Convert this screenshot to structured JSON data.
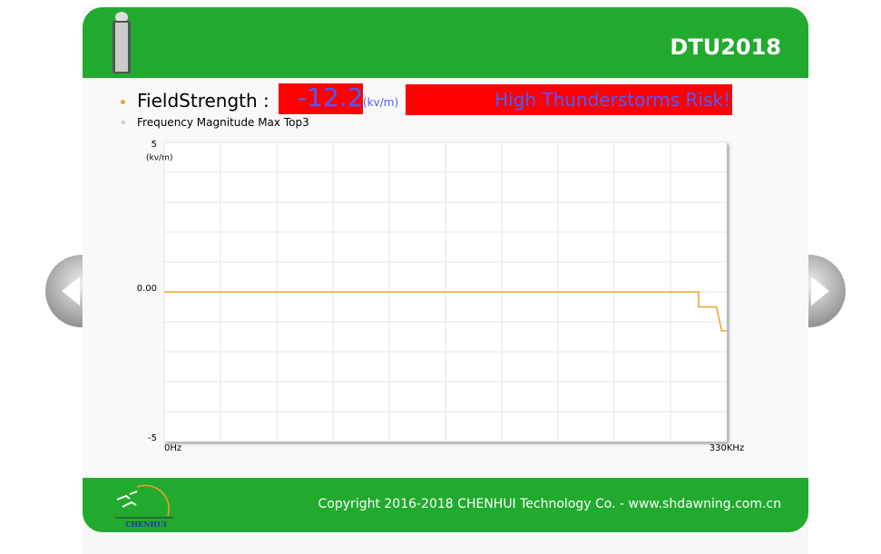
{
  "header": {
    "title": "DTU2018"
  },
  "status": {
    "label": "FieldStrength :",
    "value": -12.2,
    "unit": "(kv/m)",
    "alert": "High Thunderstorms Risk!"
  },
  "chart_data": {
    "type": "line",
    "title": "Frequency Magnitude Max Top3",
    "y_label": "(kv/m)",
    "x": [
      0,
      313.5,
      313.5,
      324,
      327,
      330
    ],
    "series": [
      {
        "color": "#f0a030",
        "values": [
          0,
          0,
          -0.5,
          -0.5,
          -1.3,
          -1.3
        ]
      }
    ],
    "xlim": [
      0,
      330
    ],
    "xticks": [
      {
        "value": 0,
        "label": "0Hz"
      },
      {
        "value": 330,
        "label": "330KHz"
      }
    ],
    "ylim": [
      -5,
      5
    ],
    "yticks": [
      5,
      {
        "value": 0,
        "label": "0.00"
      },
      -5
    ],
    "grid": true
  },
  "footer": {
    "copyright": "Copyright 2016-2018 CHENHUI Technology Co. - www.shdawning.com.cn",
    "logo": "CHENHUI"
  }
}
